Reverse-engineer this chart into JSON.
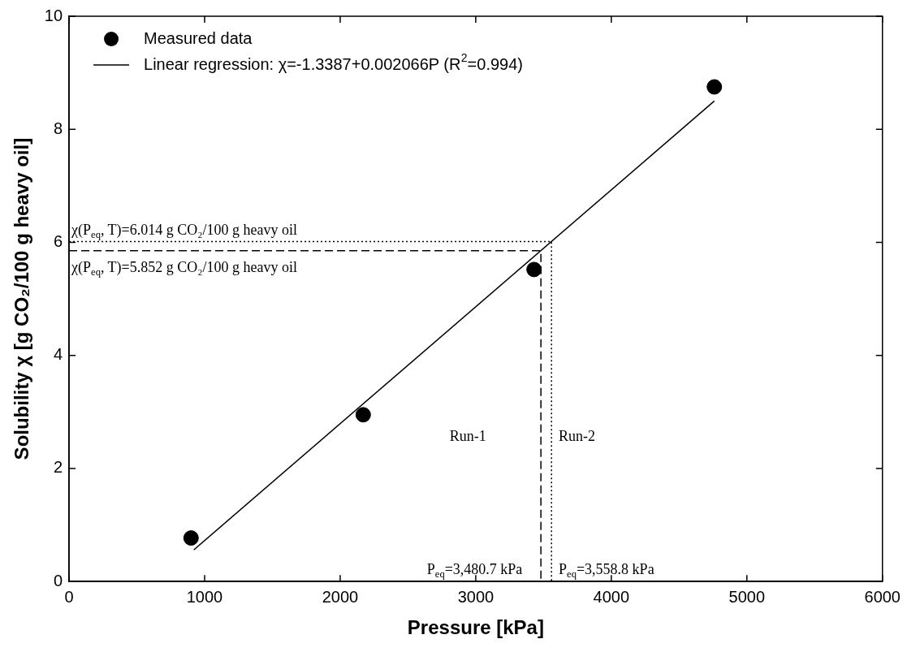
{
  "chart_data": {
    "type": "scatter",
    "xlabel": "Pressure [kPa]",
    "ylabel": "Solubility χ [g CO₂/100 g heavy oil]",
    "xlim": [
      0,
      6000
    ],
    "xticks": [
      0,
      1000,
      2000,
      3000,
      4000,
      5000,
      6000
    ],
    "ylim": [
      0,
      10
    ],
    "yticks": [
      0,
      2,
      4,
      6,
      8,
      10
    ],
    "legend": "top left",
    "series": [
      {
        "name": "Measured data",
        "marker": "circle",
        "color": "#000000",
        "x": [
          900,
          2170,
          3430,
          4760
        ],
        "values": [
          0.77,
          2.95,
          5.52,
          8.75
        ]
      },
      {
        "name": "Linear regression: χ=-1.3387+0.002066P (R$^{2}$=0.994)",
        "type": "line",
        "marker": "none",
        "color": "#000000",
        "x": [
          920,
          4760
        ],
        "values": [
          0.56,
          8.5
        ]
      },
      {
        "type": "line",
        "marker": "none",
        "color": "#000000",
        "line_style": "dashed",
        "x": [
          0,
          3480.7,
          3480.7
        ],
        "values": [
          5.852,
          5.852,
          0
        ]
      },
      {
        "type": "line",
        "marker": "none",
        "color": "#000000",
        "line_style": "dotted",
        "x": [
          0,
          3558.8,
          3558.8
        ],
        "values": [
          6.014,
          6.014,
          0
        ]
      }
    ],
    "annotations": [
      "χ(P$_{eq}$, T)=6.014 g CO₂/100 g heavy oil",
      "χ(P$_{eq}$, T)=5.852 g CO₂/100 g heavy oil",
      "Run-1",
      "Run-2",
      "P$_{eq}$=3,480.7 kPa",
      "P$_{eq}$=3,558.8 kPa"
    ]
  }
}
